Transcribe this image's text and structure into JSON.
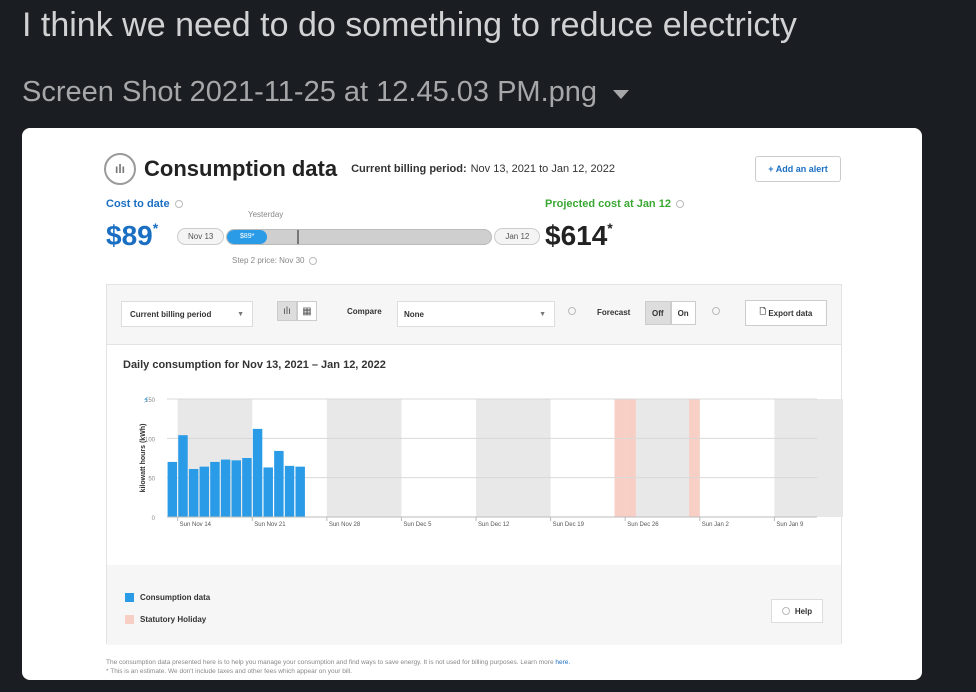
{
  "message": {
    "text": "I think we need to do something to reduce electricty",
    "attachment_name": "Screen Shot 2021-11-25 at 12.45.03 PM.png"
  },
  "screenshot": {
    "title": "Consumption data",
    "billing_period_label": "Current billing period:",
    "billing_period": "Nov 13, 2021 to Jan 12, 2022",
    "add_alert": "+ Add an alert",
    "cost_to_date_label": "Cost to date",
    "cost_to_date": "$89",
    "projected_label": "Projected cost at Jan 12",
    "projected_cost": "$614",
    "asterisk": "*",
    "yesterday": "Yesterday",
    "progress_start": "Nov 13",
    "progress_end": "Jan 12",
    "progress_fill_label": "$89*",
    "progress_fraction": 0.15,
    "step2": "Step 2 price: Nov 30",
    "period_select": "Current billing period",
    "compare_label": "Compare",
    "compare_value": "None",
    "forecast_label": "Forecast",
    "forecast_off": "Off",
    "forecast_on": "On",
    "export": "Export data",
    "chart_title": "Daily consumption for Nov 13, 2021 – Jan 12, 2022",
    "legend_consumption": "Consumption data",
    "legend_holiday": "Statutory Holiday",
    "help": "Help",
    "footer_line1": "The consumption data presented here is to help you manage your consumption and find ways to save energy. It is not used for billing purposes. Learn more",
    "footer_link": "here.",
    "footer_line2": "* This is an estimate. We don't include taxes and other fees which appear on your bill.",
    "colors": {
      "blue": "#2a9be6",
      "green": "#3aa832",
      "holiday": "#f8cfc4"
    }
  },
  "chart_data": {
    "type": "bar",
    "ylabel": "kilowatt hours (kWh)",
    "ylim": [
      0,
      150
    ],
    "yticks": [
      0,
      50,
      100,
      150
    ],
    "xticks": [
      "Sun Nov 14",
      "Sun Nov 21",
      "Sun Nov 28",
      "Sun Dec 5",
      "Sun Dec 12",
      "Sun Dec 19",
      "Sun Dec 26",
      "Sun Jan 2",
      "Sun Jan 9"
    ],
    "total_days": 61,
    "values": [
      70,
      104,
      61,
      64,
      70,
      73,
      72,
      75,
      112,
      63,
      84,
      65,
      64
    ],
    "holidays_day_index": [
      42,
      43,
      49
    ]
  }
}
